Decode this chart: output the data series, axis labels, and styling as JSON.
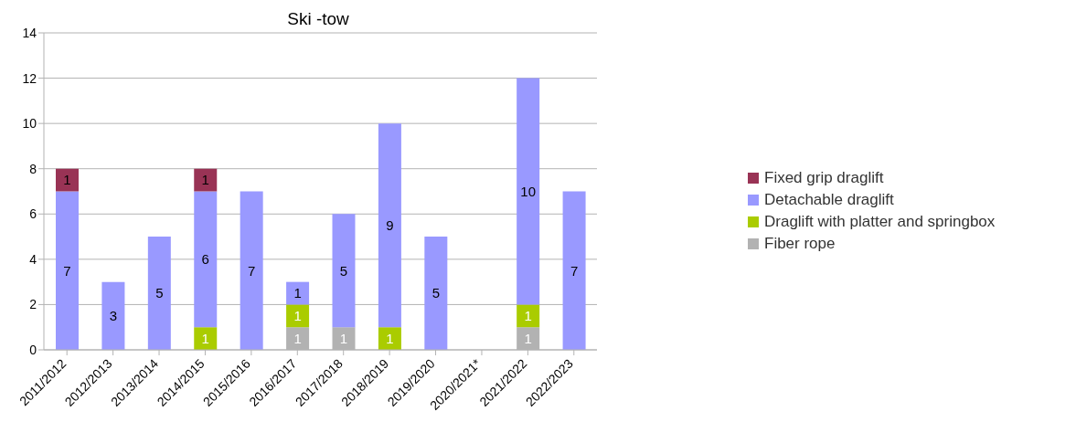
{
  "chart_data": {
    "type": "bar",
    "title": "Ski -tow",
    "stacked": true,
    "data_labels": true,
    "grid": "y",
    "legend": "right",
    "categories": [
      "2011/2012",
      "2012/2013",
      "2013/2014",
      "2014/2015",
      "2015/2016",
      "2016/2017",
      "2017/2018",
      "2018/2019",
      "2019/2020",
      "2020/2021*",
      "2021/2022",
      "2022/2023"
    ],
    "ylim": [
      0,
      14
    ],
    "yticks": [
      0,
      2,
      4,
      6,
      8,
      10,
      12,
      14
    ],
    "series": [
      {
        "name": "Fiber rope",
        "color": "#b2b2b2",
        "values": [
          null,
          null,
          null,
          null,
          null,
          1,
          1,
          null,
          null,
          null,
          1,
          null
        ]
      },
      {
        "name": "Draglift with platter and springbox",
        "color": "#aacc00",
        "values": [
          null,
          null,
          null,
          1,
          null,
          1,
          null,
          1,
          null,
          null,
          1,
          null
        ]
      },
      {
        "name": "Detachable draglift",
        "color": "#9999ff",
        "values": [
          7,
          3,
          5,
          6,
          7,
          1,
          5,
          9,
          5,
          null,
          10,
          7
        ]
      },
      {
        "name": "Fixed grip draglift",
        "color": "#993355",
        "values": [
          1,
          null,
          null,
          1,
          null,
          null,
          null,
          null,
          null,
          null,
          null,
          null
        ]
      }
    ]
  }
}
